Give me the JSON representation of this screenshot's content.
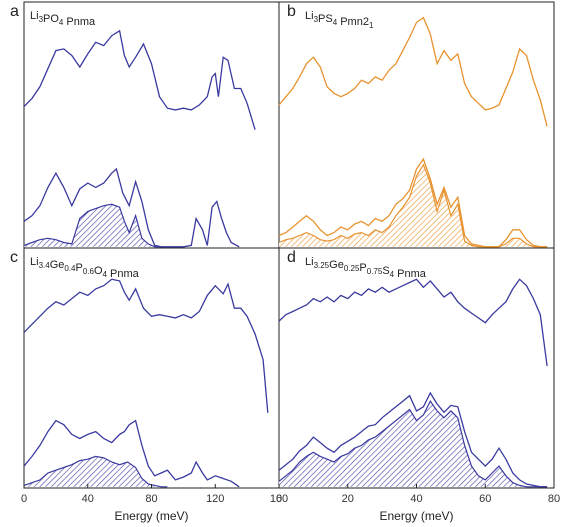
{
  "chart_data": [
    {
      "type": "line",
      "panel": "a",
      "title_parts": [
        {
          "t": "Li"
        },
        {
          "t": "3",
          "sub": true
        },
        {
          "t": "PO"
        },
        {
          "t": "4",
          "sub": true
        },
        {
          "t": " Pnma"
        }
      ],
      "color": "#3a3aa0",
      "xlim": [
        0,
        160
      ],
      "ylim": [
        0,
        1
      ],
      "series": [
        {
          "role": "total",
          "x": [
            0,
            5,
            10,
            15,
            20,
            25,
            30,
            35,
            40,
            45,
            50,
            55,
            60,
            63,
            66,
            70,
            75,
            80,
            85,
            90,
            95,
            100,
            105,
            110,
            115,
            118,
            120,
            122,
            125,
            128,
            132,
            136,
            140,
            145
          ],
          "y": [
            0.44,
            0.49,
            0.56,
            0.67,
            0.78,
            0.79,
            0.75,
            0.68,
            0.76,
            0.83,
            0.81,
            0.87,
            0.9,
            0.75,
            0.68,
            0.74,
            0.82,
            0.7,
            0.5,
            0.43,
            0.42,
            0.43,
            0.42,
            0.45,
            0.5,
            0.62,
            0.64,
            0.5,
            0.74,
            0.72,
            0.55,
            0.55,
            0.46,
            0.3
          ]
        },
        {
          "role": "partial",
          "x": [
            0,
            5,
            10,
            15,
            20,
            25,
            30,
            35,
            40,
            45,
            50,
            55,
            58,
            62,
            66,
            70,
            74,
            78,
            82,
            86,
            90,
            95,
            100,
            105,
            108,
            112,
            115,
            118,
            121,
            124,
            127,
            130,
            135
          ],
          "y": [
            0.18,
            0.22,
            0.29,
            0.42,
            0.52,
            0.42,
            0.29,
            0.41,
            0.45,
            0.42,
            0.45,
            0.52,
            0.55,
            0.38,
            0.29,
            0.46,
            0.32,
            0.12,
            0.01,
            0,
            0,
            0,
            0,
            0.01,
            0.2,
            0.12,
            0.01,
            0.28,
            0.32,
            0.2,
            0.1,
            0.03,
            0
          ]
        },
        {
          "role": "filled",
          "x": [
            0,
            5,
            10,
            15,
            20,
            25,
            30,
            35,
            40,
            45,
            50,
            55,
            60,
            63,
            66,
            70,
            74,
            78,
            82,
            86
          ],
          "y": [
            0.01,
            0.03,
            0.05,
            0.06,
            0.05,
            0.03,
            0.02,
            0.2,
            0.25,
            0.27,
            0.29,
            0.3,
            0.28,
            0.18,
            0.1,
            0.22,
            0.06,
            0.02,
            0,
            0
          ]
        }
      ]
    },
    {
      "type": "line",
      "panel": "b",
      "title_parts": [
        {
          "t": "Li"
        },
        {
          "t": "3",
          "sub": true
        },
        {
          "t": "PS"
        },
        {
          "t": "4",
          "sub": true
        },
        {
          "t": " Pmn2"
        },
        {
          "t": "1",
          "sub": true
        }
      ],
      "color": "#e8922e",
      "xlim": [
        0,
        80
      ],
      "ylim": [
        0,
        1
      ],
      "series": [
        {
          "role": "total",
          "x": [
            0,
            2,
            4,
            6,
            8,
            10,
            12,
            14,
            16,
            18,
            20,
            22,
            24,
            26,
            28,
            30,
            32,
            34,
            36,
            38,
            40,
            42,
            44,
            46,
            48,
            50,
            52,
            54,
            56,
            58,
            60,
            62,
            64,
            66,
            68,
            70,
            72,
            74,
            76,
            78
          ],
          "y": [
            0.45,
            0.5,
            0.55,
            0.62,
            0.7,
            0.74,
            0.68,
            0.56,
            0.52,
            0.5,
            0.52,
            0.55,
            0.6,
            0.58,
            0.62,
            0.6,
            0.66,
            0.7,
            0.78,
            0.86,
            0.95,
            0.98,
            0.88,
            0.7,
            0.78,
            0.72,
            0.76,
            0.58,
            0.5,
            0.46,
            0.42,
            0.43,
            0.45,
            0.55,
            0.65,
            0.79,
            0.75,
            0.6,
            0.48,
            0.32
          ]
        },
        {
          "role": "partial",
          "x": [
            0,
            2,
            4,
            6,
            8,
            10,
            12,
            14,
            16,
            18,
            20,
            22,
            24,
            26,
            28,
            30,
            32,
            34,
            36,
            38,
            40,
            42,
            44,
            46,
            48,
            50,
            52,
            54,
            56,
            58,
            60,
            62,
            64,
            66,
            68,
            70,
            72,
            74,
            76,
            78
          ],
          "y": [
            0.08,
            0.1,
            0.14,
            0.18,
            0.22,
            0.18,
            0.12,
            0.08,
            0.1,
            0.14,
            0.12,
            0.16,
            0.18,
            0.15,
            0.2,
            0.18,
            0.22,
            0.3,
            0.34,
            0.4,
            0.55,
            0.62,
            0.48,
            0.3,
            0.42,
            0.28,
            0.35,
            0.08,
            0.02,
            0.01,
            0,
            0,
            0,
            0.05,
            0.12,
            0.12,
            0.05,
            0.01,
            0,
            0
          ]
        },
        {
          "role": "filled",
          "x": [
            0,
            2,
            4,
            6,
            8,
            10,
            12,
            14,
            16,
            18,
            20,
            22,
            24,
            26,
            28,
            30,
            32,
            34,
            36,
            38,
            40,
            42,
            44,
            46,
            48,
            50,
            52,
            54,
            56,
            58,
            60,
            62,
            64,
            66,
            68,
            70,
            72,
            74,
            76,
            78
          ],
          "y": [
            0.03,
            0.05,
            0.06,
            0.08,
            0.1,
            0.08,
            0.05,
            0.04,
            0.05,
            0.08,
            0.06,
            0.09,
            0.1,
            0.08,
            0.12,
            0.1,
            0.14,
            0.22,
            0.28,
            0.35,
            0.5,
            0.58,
            0.45,
            0.25,
            0.4,
            0.22,
            0.3,
            0.04,
            0.01,
            0,
            0,
            0,
            0,
            0.02,
            0.06,
            0.06,
            0.02,
            0,
            0,
            0
          ]
        }
      ]
    },
    {
      "type": "line",
      "panel": "c",
      "title_parts": [
        {
          "t": "Li"
        },
        {
          "t": "3.4",
          "sub": true
        },
        {
          "t": "Ge"
        },
        {
          "t": "0.4",
          "sub": true
        },
        {
          "t": "P"
        },
        {
          "t": "0.6",
          "sub": true
        },
        {
          "t": "O"
        },
        {
          "t": "4",
          "sub": true
        },
        {
          "t": " Pnma"
        }
      ],
      "color": "#3a3aa0",
      "xlim": [
        0,
        160
      ],
      "ylim": [
        0,
        1
      ],
      "xticks": [
        0,
        40,
        80,
        120,
        160
      ],
      "xlabel": "Energy (meV)",
      "series": [
        {
          "role": "total",
          "x": [
            0,
            5,
            10,
            15,
            20,
            25,
            30,
            35,
            40,
            45,
            50,
            55,
            60,
            63,
            66,
            70,
            75,
            80,
            85,
            90,
            95,
            100,
            105,
            110,
            115,
            120,
            125,
            128,
            132,
            136,
            140,
            145,
            150,
            153
          ],
          "y": [
            0.55,
            0.6,
            0.65,
            0.7,
            0.74,
            0.72,
            0.76,
            0.8,
            0.78,
            0.82,
            0.84,
            0.88,
            0.87,
            0.8,
            0.75,
            0.82,
            0.7,
            0.65,
            0.66,
            0.65,
            0.64,
            0.66,
            0.64,
            0.68,
            0.78,
            0.84,
            0.79,
            0.85,
            0.7,
            0.7,
            0.65,
            0.54,
            0.38,
            0.05
          ]
        },
        {
          "role": "partial",
          "x": [
            0,
            5,
            10,
            15,
            20,
            25,
            30,
            35,
            40,
            45,
            50,
            55,
            60,
            63,
            66,
            70,
            74,
            78,
            82,
            86,
            90,
            95,
            100,
            105,
            108,
            112,
            115,
            120,
            125,
            130,
            135
          ],
          "y": [
            0.15,
            0.22,
            0.3,
            0.4,
            0.48,
            0.45,
            0.38,
            0.35,
            0.38,
            0.4,
            0.35,
            0.32,
            0.38,
            0.4,
            0.45,
            0.48,
            0.3,
            0.15,
            0.08,
            0.1,
            0.12,
            0.05,
            0.07,
            0.1,
            0.18,
            0.1,
            0.05,
            0.08,
            0.06,
            0.04,
            0
          ]
        },
        {
          "role": "filled",
          "x": [
            0,
            5,
            10,
            15,
            20,
            25,
            30,
            35,
            40,
            45,
            50,
            55,
            60,
            65,
            70,
            74,
            78,
            82,
            86,
            90
          ],
          "y": [
            0.01,
            0.03,
            0.05,
            0.1,
            0.12,
            0.14,
            0.16,
            0.19,
            0.2,
            0.22,
            0.21,
            0.18,
            0.16,
            0.18,
            0.14,
            0.06,
            0.02,
            0.01,
            0,
            0
          ]
        }
      ]
    },
    {
      "type": "line",
      "panel": "d",
      "title_parts": [
        {
          "t": "Li"
        },
        {
          "t": "3.25",
          "sub": true
        },
        {
          "t": "Ge"
        },
        {
          "t": "0.25",
          "sub": true
        },
        {
          "t": "P"
        },
        {
          "t": "0.75",
          "sub": true
        },
        {
          "t": "S"
        },
        {
          "t": "4",
          "sub": true
        },
        {
          "t": " Pnma"
        }
      ],
      "color": "#3a3aa0",
      "xlim": [
        0,
        80
      ],
      "ylim": [
        0,
        1
      ],
      "xticks": [
        0,
        20,
        40,
        60,
        80
      ],
      "xlabel": "Energy (meV)",
      "series": [
        {
          "role": "total",
          "x": [
            0,
            2,
            4,
            6,
            8,
            10,
            12,
            14,
            16,
            18,
            20,
            22,
            24,
            26,
            28,
            30,
            32,
            34,
            36,
            38,
            40,
            42,
            44,
            46,
            48,
            50,
            52,
            54,
            56,
            58,
            60,
            62,
            64,
            66,
            68,
            70,
            72,
            74,
            76,
            78
          ],
          "y": [
            0.62,
            0.66,
            0.68,
            0.7,
            0.72,
            0.76,
            0.74,
            0.77,
            0.74,
            0.78,
            0.76,
            0.8,
            0.78,
            0.82,
            0.8,
            0.83,
            0.8,
            0.82,
            0.84,
            0.86,
            0.88,
            0.83,
            0.87,
            0.82,
            0.77,
            0.8,
            0.74,
            0.7,
            0.67,
            0.64,
            0.61,
            0.66,
            0.7,
            0.74,
            0.82,
            0.88,
            0.84,
            0.76,
            0.66,
            0.34
          ]
        },
        {
          "role": "partial",
          "x": [
            0,
            2,
            4,
            6,
            8,
            10,
            12,
            14,
            16,
            18,
            20,
            22,
            24,
            26,
            28,
            30,
            32,
            34,
            36,
            38,
            40,
            42,
            44,
            46,
            48,
            50,
            52,
            54,
            56,
            58,
            60,
            62,
            64,
            66,
            68,
            70,
            72,
            74,
            76,
            78
          ],
          "y": [
            0.12,
            0.16,
            0.2,
            0.26,
            0.3,
            0.36,
            0.32,
            0.28,
            0.25,
            0.3,
            0.33,
            0.36,
            0.4,
            0.44,
            0.45,
            0.5,
            0.54,
            0.58,
            0.62,
            0.66,
            0.55,
            0.58,
            0.68,
            0.6,
            0.54,
            0.59,
            0.58,
            0.4,
            0.25,
            0.2,
            0.15,
            0.2,
            0.28,
            0.2,
            0.1,
            0.05,
            0.02,
            0.01,
            0,
            0
          ]
        },
        {
          "role": "filled",
          "x": [
            0,
            2,
            4,
            6,
            8,
            10,
            12,
            14,
            16,
            18,
            20,
            22,
            24,
            26,
            28,
            30,
            32,
            34,
            36,
            38,
            40,
            42,
            44,
            46,
            48,
            50,
            52,
            54,
            56,
            58,
            60,
            62,
            64,
            66,
            68,
            70,
            72,
            74,
            76,
            78
          ],
          "y": [
            0.04,
            0.08,
            0.12,
            0.18,
            0.22,
            0.25,
            0.22,
            0.2,
            0.18,
            0.22,
            0.24,
            0.28,
            0.3,
            0.34,
            0.36,
            0.4,
            0.44,
            0.48,
            0.52,
            0.56,
            0.48,
            0.52,
            0.62,
            0.55,
            0.5,
            0.55,
            0.5,
            0.3,
            0.15,
            0.08,
            0.05,
            0.1,
            0.15,
            0.08,
            0.03,
            0.01,
            0,
            0,
            0,
            0
          ]
        }
      ]
    }
  ]
}
